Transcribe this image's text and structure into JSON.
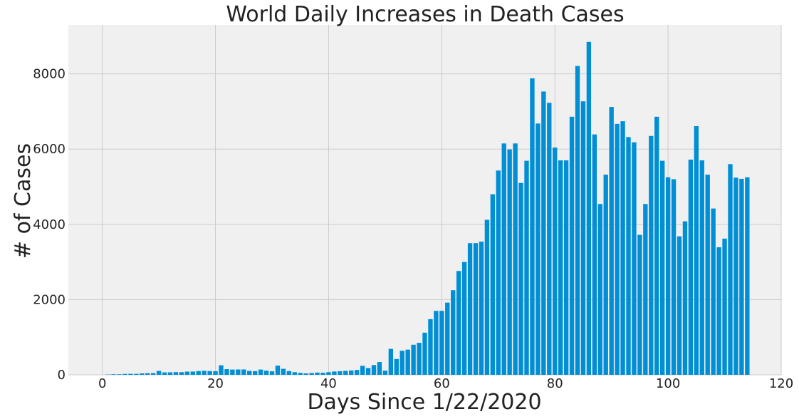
{
  "chart_data": {
    "type": "bar",
    "title": "World Daily Increases in Death Cases",
    "xlabel": "Days Since 1/22/2020",
    "ylabel": "# of Cases",
    "xlim": [
      -6,
      120
    ],
    "ylim": [
      0,
      9300
    ],
    "xticks": [
      0,
      20,
      40,
      60,
      80,
      100,
      120
    ],
    "yticks": [
      0,
      2000,
      4000,
      6000,
      8000
    ],
    "grid": true,
    "colors": {
      "bar": "#008fd5",
      "plot_bg": "#f0f0f0",
      "grid": "#cbcbcb"
    },
    "x": [
      0,
      1,
      2,
      3,
      4,
      5,
      6,
      7,
      8,
      9,
      10,
      11,
      12,
      13,
      14,
      15,
      16,
      17,
      18,
      19,
      20,
      21,
      22,
      23,
      24,
      25,
      26,
      27,
      28,
      29,
      30,
      31,
      32,
      33,
      34,
      35,
      36,
      37,
      38,
      39,
      40,
      41,
      42,
      43,
      44,
      45,
      46,
      47,
      48,
      49,
      50,
      51,
      52,
      53,
      54,
      55,
      56,
      57,
      58,
      59,
      60,
      61,
      62,
      63,
      64,
      65,
      66,
      67,
      68,
      69,
      70,
      71,
      72,
      73,
      74,
      75,
      76,
      77,
      78,
      79,
      80,
      81,
      82,
      83,
      84,
      85,
      86,
      87,
      88,
      89,
      90,
      91,
      92,
      93,
      94,
      95,
      96,
      97,
      98,
      99,
      100,
      101,
      102,
      103,
      104,
      105,
      106,
      107,
      108,
      109,
      110,
      111,
      112,
      113,
      114
    ],
    "values": [
      0,
      8,
      16,
      15,
      24,
      26,
      26,
      38,
      43,
      46,
      103,
      64,
      66,
      72,
      70,
      85,
      87,
      100,
      107,
      100,
      97,
      254,
      150,
      140,
      142,
      143,
      105,
      98,
      140,
      110,
      93,
      245,
      160,
      100,
      70,
      52,
      38,
      48,
      60,
      55,
      70,
      88,
      96,
      106,
      115,
      130,
      240,
      180,
      260,
      340,
      110,
      690,
      420,
      640,
      670,
      800,
      850,
      1120,
      1480,
      1700,
      1700,
      1920,
      2250,
      2760,
      3000,
      3500,
      3500,
      3540,
      4120,
      4800,
      5430,
      6150,
      5990,
      6150,
      5100,
      5690,
      7880,
      6680,
      7530,
      7230,
      6040,
      5700,
      5700,
      6860,
      8210,
      7270,
      8850,
      6390,
      4540,
      5320,
      7120,
      6670,
      6740,
      6320,
      6180,
      3720,
      4540,
      6350,
      6860,
      5690,
      5250,
      5200,
      3680,
      4080,
      5720,
      6610,
      5700,
      5320,
      4420,
      3390,
      3620,
      5600,
      5240,
      5210,
      5250
    ]
  }
}
